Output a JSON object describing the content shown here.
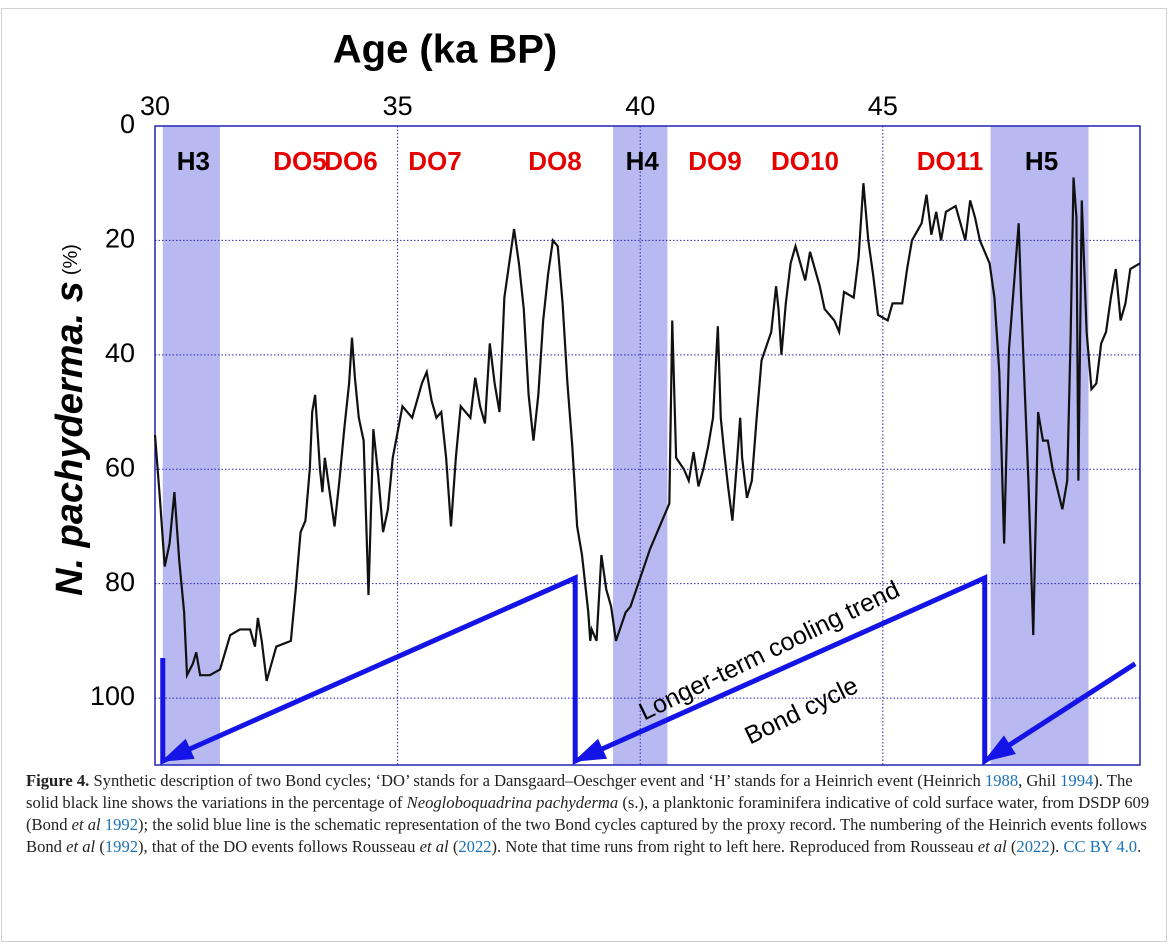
{
  "chart_data": {
    "type": "line",
    "x_label": "Age (ka BP)",
    "y_label": "N. pachyderma. s",
    "y_label_unit": "(%)",
    "xlim": [
      30,
      50.3
    ],
    "xticks": [
      30,
      35,
      40,
      45
    ],
    "ylim": [
      0,
      111.7
    ],
    "yticks": [
      0,
      20,
      40,
      60,
      80,
      100
    ],
    "y_inverted": true,
    "x_axis_position": "top",
    "grid": true,
    "axis_color": "#2424b4",
    "shaded_regions": [
      {
        "label": "H3",
        "x": [
          30.16,
          31.34
        ]
      },
      {
        "label": "H4",
        "x": [
          39.44,
          40.56
        ]
      },
      {
        "label": "H5",
        "x": [
          47.22,
          49.24
        ]
      }
    ],
    "shade_color": "#b9b9f2",
    "event_labels": [
      "DO5",
      "DO6",
      "DO7",
      "DO8",
      "DO9",
      "DO10",
      "DO11"
    ],
    "event_label_color": "#e60000",
    "annotations": [
      "Longer-term cooling trend",
      "Bond cycle"
    ],
    "series": [
      {
        "color": "#111111",
        "x": [
          30.0,
          30.1,
          30.2,
          30.3,
          30.4,
          30.5,
          30.6,
          30.66,
          30.78,
          30.85,
          30.93,
          31.13,
          31.34,
          31.55,
          31.75,
          31.96,
          32.06,
          32.12,
          32.2,
          32.3,
          32.4,
          32.5,
          32.8,
          32.9,
          33.0,
          33.1,
          33.19,
          33.24,
          33.3,
          33.4,
          33.45,
          33.5,
          33.6,
          33.7,
          33.8,
          33.9,
          34.0,
          34.06,
          34.12,
          34.2,
          34.3,
          34.4,
          34.5,
          34.6,
          34.7,
          34.8,
          34.9,
          35.1,
          35.2,
          35.3,
          35.5,
          35.6,
          35.7,
          35.8,
          35.9,
          36.0,
          36.1,
          36.2,
          36.3,
          36.5,
          36.6,
          36.7,
          36.8,
          36.9,
          37.0,
          37.1,
          37.2,
          37.3,
          37.4,
          37.5,
          37.6,
          37.7,
          37.8,
          37.9,
          38.0,
          38.1,
          38.2,
          38.3,
          38.4,
          38.5,
          38.6,
          38.7,
          38.8,
          38.93,
          38.97,
          39.0,
          39.1,
          39.2,
          39.3,
          39.4,
          39.5,
          39.7,
          39.8,
          40.0,
          40.2,
          40.4,
          40.6,
          40.66,
          40.74,
          40.82,
          40.9,
          41.0,
          41.1,
          41.2,
          41.3,
          41.4,
          41.5,
          41.6,
          41.66,
          41.73,
          41.81,
          41.9,
          42.0,
          42.06,
          42.1,
          42.2,
          42.3,
          42.4,
          42.5,
          42.7,
          42.8,
          42.85,
          42.91,
          43.0,
          43.1,
          43.2,
          43.3,
          43.4,
          43.5,
          43.7,
          43.8,
          44.0,
          44.1,
          44.2,
          44.4,
          44.5,
          44.6,
          44.7,
          44.8,
          44.9,
          45.1,
          45.2,
          45.4,
          45.5,
          45.6,
          45.8,
          45.9,
          46.0,
          46.1,
          46.2,
          46.3,
          46.5,
          46.6,
          46.7,
          46.8,
          46.9,
          47.0,
          47.1,
          47.2,
          47.3,
          47.4,
          47.5,
          47.6,
          47.8,
          47.85,
          47.9,
          48.0,
          48.1,
          48.2,
          48.3,
          48.4,
          48.5,
          48.7,
          48.8,
          48.87,
          48.93,
          48.99,
          49.03,
          49.1,
          49.2,
          49.3,
          49.4,
          49.5,
          49.6,
          49.7,
          49.8,
          49.9,
          50.0,
          50.1,
          50.3
        ],
        "values": [
          54,
          65,
          77,
          73,
          64,
          76,
          85,
          96,
          94,
          92,
          96,
          96,
          95,
          89,
          88,
          88,
          91,
          86,
          90,
          97,
          94,
          91,
          90,
          81,
          71,
          69,
          60,
          50,
          47,
          60,
          64,
          58,
          64,
          70,
          62,
          53,
          45,
          37,
          44,
          51,
          55,
          82,
          53,
          61,
          71,
          67,
          58,
          49,
          50,
          51,
          45,
          43,
          48,
          51,
          50,
          58,
          70,
          58,
          49,
          51,
          44,
          49,
          52,
          38,
          45,
          50,
          30,
          24,
          18,
          24,
          32,
          47,
          55,
          47,
          34,
          26,
          20,
          21,
          31,
          45,
          56,
          70,
          75,
          85,
          90,
          88,
          90,
          75,
          81,
          84,
          90,
          85,
          84,
          79,
          74,
          70,
          66,
          34,
          58,
          59,
          60,
          62,
          57,
          63,
          60,
          56,
          51,
          35,
          51,
          57,
          63,
          69,
          58,
          51,
          58,
          65,
          62,
          51,
          41,
          36,
          28,
          32,
          40,
          31,
          24,
          21,
          24,
          27,
          22,
          28,
          32,
          34,
          36,
          29,
          30,
          23,
          10,
          20,
          26,
          33,
          34,
          31,
          31,
          25,
          20,
          17,
          12,
          19,
          15,
          20,
          15,
          14,
          17,
          20,
          13,
          16,
          20,
          22,
          24,
          30,
          43,
          73,
          39,
          17,
          30,
          41,
          62,
          89,
          50,
          55,
          55,
          60,
          67,
          62,
          37,
          9,
          16,
          62,
          13,
          36,
          46,
          45,
          38,
          36,
          30,
          25,
          34,
          31,
          25,
          24
        ]
      },
      {
        "color": "#1414e6",
        "arrowheads": true,
        "x": [
          50.2,
          47.1,
          47.1,
          38.66,
          38.66,
          30.16,
          30.16
        ],
        "values": [
          94,
          111,
          79,
          111,
          79,
          111,
          93
        ]
      }
    ]
  },
  "caption": {
    "parts": [
      "Figure 4.",
      "Synthetic description of two Bond cycles; ‘DO’ stands for a Dansgaard–Oeschger event and ‘H’ stands for a Heinrich event (Heinrich",
      "1988",
      ", Ghil",
      "1994",
      "). The solid black line shows the variations in the percentage of",
      "Neogloboquadrina pachyderma",
      "(s.), a planktonic foraminifera indicative of cold surface water, from DSDP 609 (Bond",
      "et al",
      "1992",
      "); the solid blue line is the schematic representation of the two Bond cycles captured by the proxy record. The numbering of the Heinrich events follows Bond",
      "et al",
      "(",
      "1992",
      "), that of the DO events follows Rousseau",
      "et al",
      "(",
      "2022",
      "). Note that time runs from right to left here. Reproduced from Rousseau",
      "et al",
      "(",
      "2022",
      ").",
      "CC BY 4.0",
      "."
    ]
  }
}
